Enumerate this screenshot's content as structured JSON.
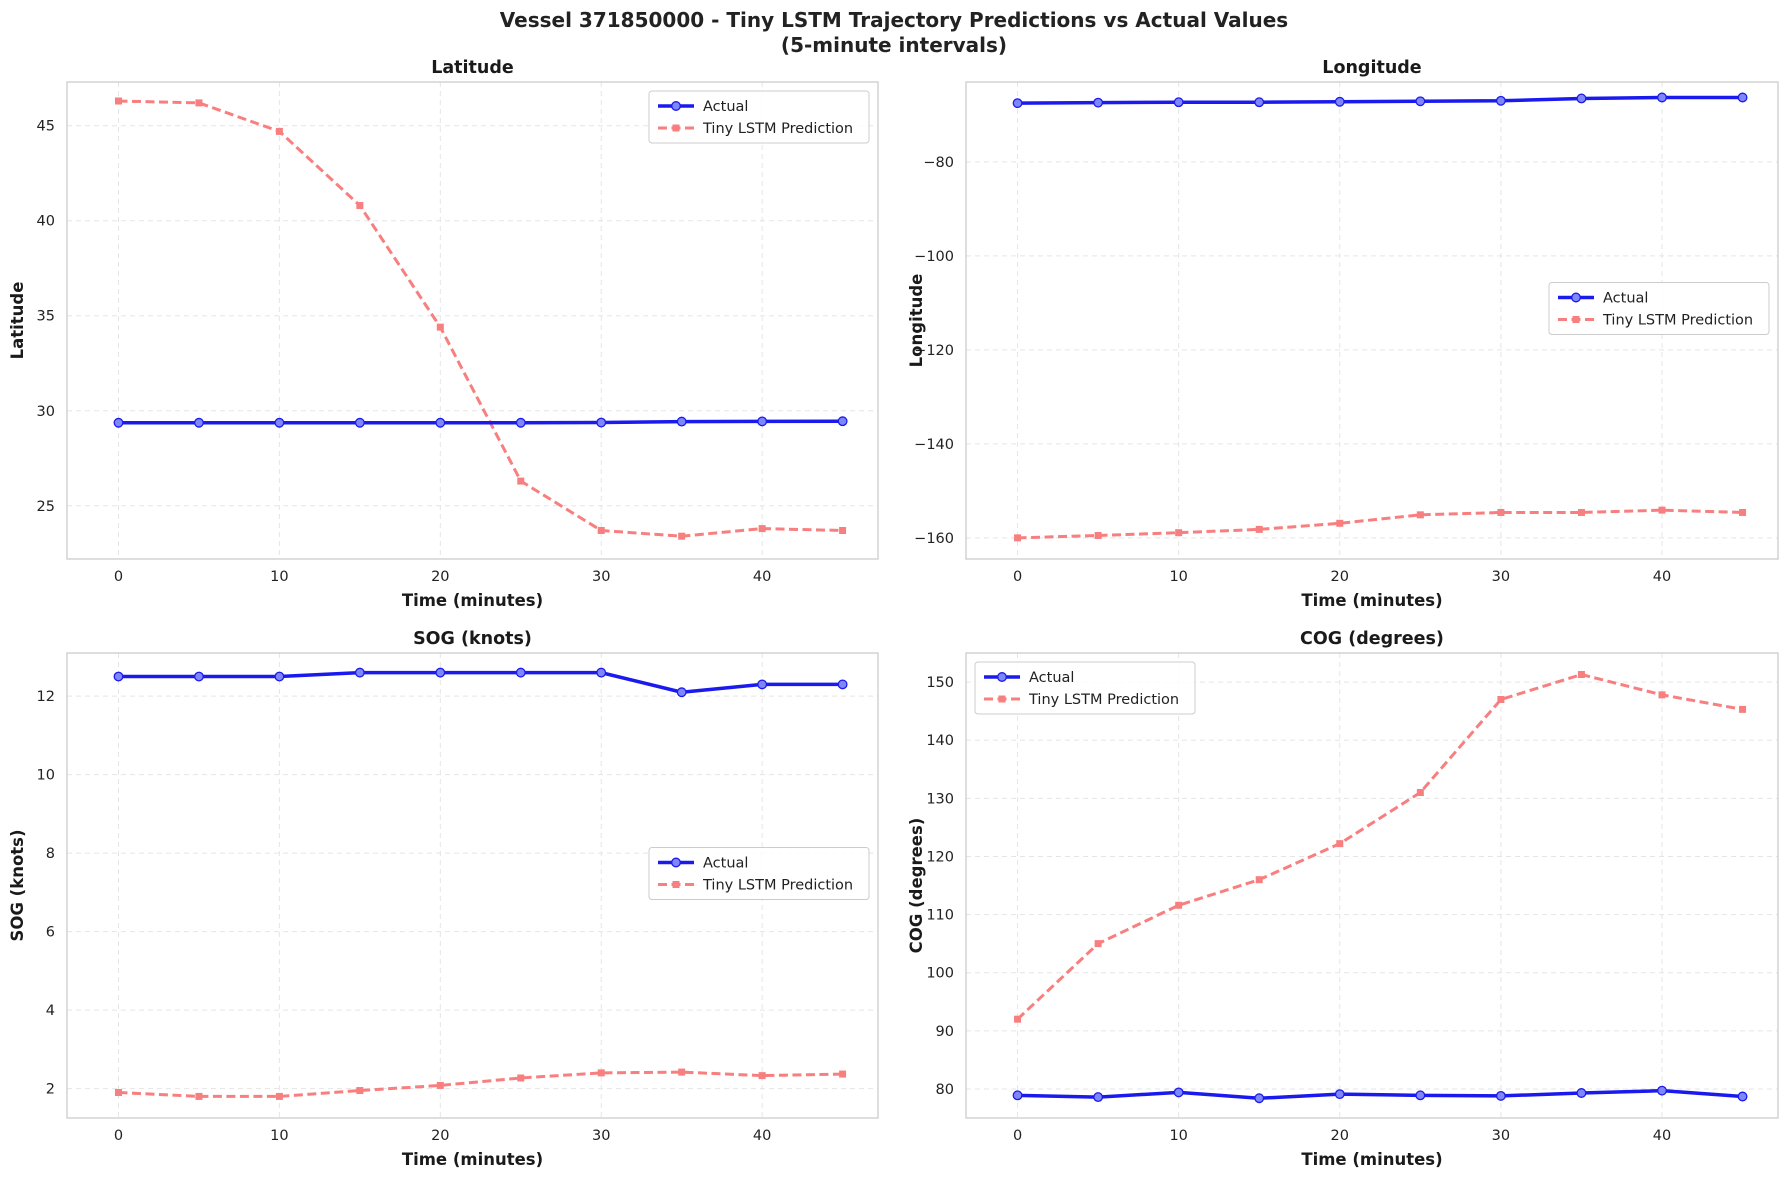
{
  "figure": {
    "title_line1": "Vessel 371850000 - Tiny LSTM Trajectory Predictions vs Actual Values",
    "title_line2": "(5-minute intervals)"
  },
  "colors": {
    "actual": "#1a1aee",
    "actual_marker_fill": "#7f86f8",
    "prediction": "#f87f7f",
    "grid": "#e5e5e5",
    "frame": "#cccccc"
  },
  "chart_data": [
    {
      "type": "line",
      "title": "Latitude",
      "xlabel": "Time (minutes)",
      "ylabel": "Latitude",
      "xlim": [
        -3.2,
        47.2
      ],
      "ylim": [
        22.2,
        47.3
      ],
      "xticks": [
        0,
        10,
        20,
        30,
        40
      ],
      "yticks": [
        25,
        30,
        35,
        40,
        45
      ],
      "grid": true,
      "legend": "upper right",
      "x": [
        0,
        5,
        10,
        15,
        20,
        25,
        30,
        35,
        40,
        45
      ],
      "series": [
        {
          "name": "Actual",
          "values": [
            29.37,
            29.37,
            29.37,
            29.37,
            29.37,
            29.37,
            29.38,
            29.43,
            29.44,
            29.45
          ]
        },
        {
          "name": "Tiny LSTM Prediction",
          "values": [
            46.3,
            46.2,
            44.7,
            40.8,
            34.4,
            26.3,
            23.7,
            23.4,
            23.8,
            23.7
          ]
        }
      ]
    },
    {
      "type": "line",
      "title": "Longitude",
      "xlabel": "Time (minutes)",
      "ylabel": "Longitude",
      "xlim": [
        -3.2,
        47.2
      ],
      "ylim": [
        -164.5,
        -63.0
      ],
      "xticks": [
        0,
        10,
        20,
        30,
        40
      ],
      "yticks": [
        -80,
        -100,
        -120,
        -140,
        -160
      ],
      "grid": true,
      "legend": "center right",
      "x": [
        0,
        5,
        10,
        15,
        20,
        25,
        30,
        35,
        40,
        45
      ],
      "series": [
        {
          "name": "Actual",
          "values": [
            -67.5,
            -67.4,
            -67.3,
            -67.3,
            -67.2,
            -67.1,
            -67.0,
            -66.5,
            -66.3,
            -66.3
          ]
        },
        {
          "name": "Tiny LSTM Prediction",
          "values": [
            -160.0,
            -159.5,
            -158.9,
            -158.2,
            -156.9,
            -155.1,
            -154.6,
            -154.6,
            -154.1,
            -154.6
          ]
        }
      ]
    },
    {
      "type": "line",
      "title": "SOG (knots)",
      "xlabel": "Time (minutes)",
      "ylabel": "SOG (knots)",
      "xlim": [
        -3.2,
        47.2
      ],
      "ylim": [
        1.25,
        13.1
      ],
      "xticks": [
        0,
        10,
        20,
        30,
        40
      ],
      "yticks": [
        2,
        4,
        6,
        8,
        10,
        12
      ],
      "grid": true,
      "legend": "center right",
      "x": [
        0,
        5,
        10,
        15,
        20,
        25,
        30,
        35,
        40,
        45
      ],
      "series": [
        {
          "name": "Actual",
          "values": [
            12.5,
            12.5,
            12.5,
            12.6,
            12.6,
            12.6,
            12.6,
            12.1,
            12.3,
            12.3
          ]
        },
        {
          "name": "Tiny LSTM Prediction",
          "values": [
            1.9,
            1.8,
            1.8,
            1.95,
            2.08,
            2.27,
            2.4,
            2.42,
            2.33,
            2.37
          ]
        }
      ]
    },
    {
      "type": "line",
      "title": "COG (degrees)",
      "xlabel": "Time (minutes)",
      "ylabel": "COG (degrees)",
      "xlim": [
        -3.2,
        47.2
      ],
      "ylim": [
        75.0,
        155.0
      ],
      "xticks": [
        0,
        10,
        20,
        30,
        40
      ],
      "yticks": [
        80,
        90,
        100,
        110,
        120,
        130,
        140,
        150
      ],
      "grid": true,
      "legend": "upper left",
      "x": [
        0,
        5,
        10,
        15,
        20,
        25,
        30,
        35,
        40,
        45
      ],
      "series": [
        {
          "name": "Actual",
          "values": [
            78.9,
            78.6,
            79.4,
            78.4,
            79.1,
            78.9,
            78.8,
            79.3,
            79.7,
            78.7
          ]
        },
        {
          "name": "Tiny LSTM Prediction",
          "values": [
            92.0,
            105.0,
            111.6,
            116.0,
            122.2,
            131.0,
            147.0,
            151.3,
            147.8,
            145.3
          ]
        }
      ]
    }
  ]
}
